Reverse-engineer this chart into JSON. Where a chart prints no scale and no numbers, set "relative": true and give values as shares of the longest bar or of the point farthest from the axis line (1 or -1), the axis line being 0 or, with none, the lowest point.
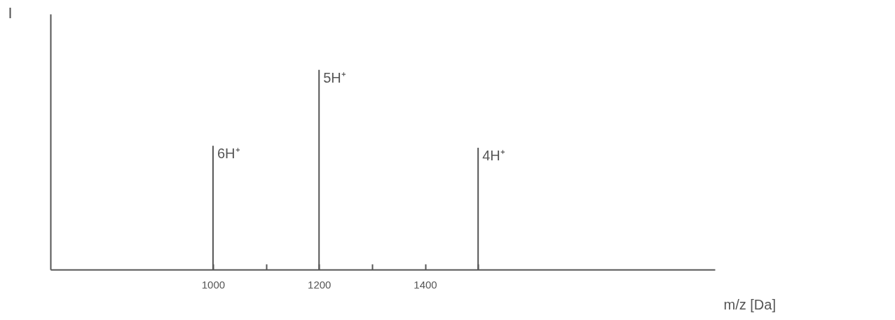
{
  "chart_data": {
    "type": "bar",
    "relative": true,
    "xlabel": "m/z [Da]",
    "ylabel": "I",
    "x": [
      1000,
      1200,
      1500
    ],
    "values": [
      0.62,
      1,
      0.61
    ],
    "color": "#555555",
    "xlim": [
      700,
      1940
    ],
    "xticks": [
      1000,
      {
        "value": 1100,
        "label": null
      },
      1200,
      {
        "value": 1300,
        "label": null
      },
      1400,
      {
        "value": 1500,
        "label": null
      }
    ],
    "annotations": [
      {
        "text": "6H⁺",
        "x": 1000,
        "y": 0.62
      },
      {
        "text": "5H⁺",
        "x": 1200,
        "y": 1
      },
      {
        "text": "4H⁺",
        "x": 1500,
        "y": 0.61
      }
    ]
  }
}
